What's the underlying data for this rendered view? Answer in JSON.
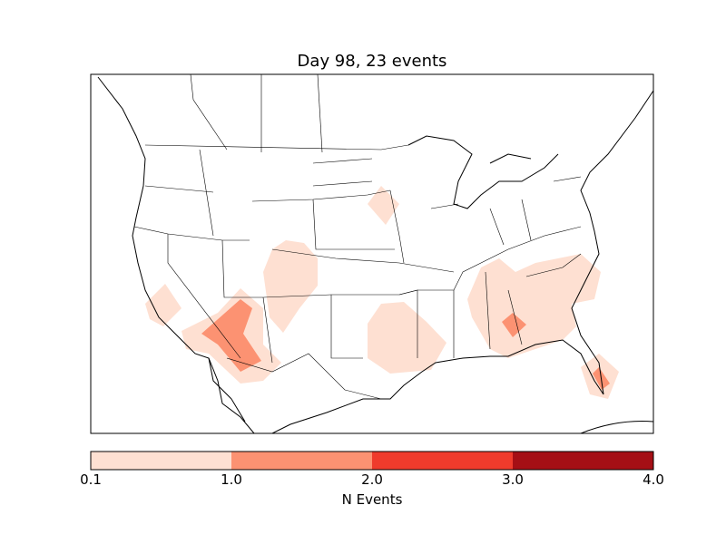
{
  "title": "Day 98, 23 events",
  "colorbar": {
    "label": "N Events",
    "ticks": [
      "0.1",
      "1.0",
      "2.0",
      "3.0",
      "4.0"
    ],
    "levels": [
      0.1,
      1.0,
      2.0,
      3.0,
      4.0
    ],
    "colors": [
      "#fee0d2",
      "#fc9272",
      "#ef3b2c",
      "#a50f15"
    ]
  },
  "map": {
    "region": "North America (contiguous United States)",
    "features": [
      "coastlines",
      "country borders",
      "state borders"
    ],
    "event_areas": [
      {
        "location": "California coast",
        "level": "0.1-1.0"
      },
      {
        "location": "Utah / Colorado",
        "level": "0.1-1.0"
      },
      {
        "location": "Arizona / southern Nevada",
        "level": "0.1-1.0"
      },
      {
        "location": "Arizona",
        "level": "1.0-2.0"
      },
      {
        "location": "Oklahoma / north Texas",
        "level": "0.1-1.0"
      },
      {
        "location": "Iowa / Nebraska",
        "level": "0.1-1.0"
      },
      {
        "location": "Southeast (Tennessee to Carolinas, Georgia, north Florida)",
        "level": "0.1-1.0"
      },
      {
        "location": "Georgia",
        "level": "1.0-2.0"
      },
      {
        "location": "South Florida",
        "level": "0.1-1.0"
      },
      {
        "location": "South Florida",
        "level": "1.0-2.0"
      }
    ]
  }
}
